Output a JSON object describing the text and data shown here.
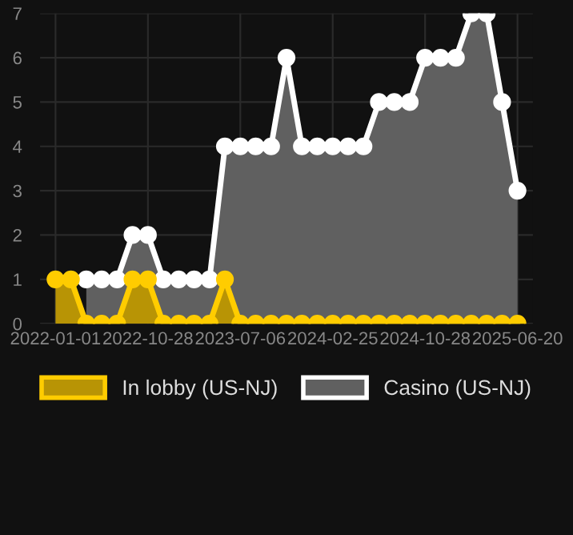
{
  "chart_data": {
    "type": "area",
    "categories": [
      "2022-01-01",
      null,
      null,
      null,
      null,
      null,
      "2022-10-28",
      null,
      null,
      null,
      null,
      null,
      "2023-07-06",
      null,
      null,
      null,
      null,
      null,
      "2024-02-25",
      null,
      null,
      null,
      null,
      null,
      "2024-10-28",
      null,
      null,
      null,
      null,
      null,
      "2025-06-20"
    ],
    "series": [
      {
        "name": "In lobby (US-NJ)",
        "color": "#ffcc00",
        "values": [
          1,
          1,
          0,
          0,
          0,
          1,
          1,
          0,
          0,
          0,
          0,
          1,
          0,
          0,
          0,
          0,
          0,
          0,
          0,
          0,
          0,
          0,
          0,
          0,
          0,
          0,
          0,
          0,
          0,
          0,
          0
        ]
      },
      {
        "name": "Casino (US-NJ)",
        "color": "#ffffff",
        "values": [
          null,
          null,
          1,
          1,
          1,
          2,
          2,
          1,
          1,
          1,
          1,
          4,
          4,
          4,
          4,
          6,
          4,
          4,
          4,
          4,
          4,
          5,
          5,
          5,
          6,
          6,
          6,
          7,
          7,
          5,
          3
        ]
      }
    ],
    "ylim": [
      0,
      7
    ],
    "yticks": [
      0,
      1,
      2,
      3,
      4,
      5,
      6,
      7
    ],
    "grid": true,
    "legend": "bottom",
    "marker": "circle",
    "line_style": "solid"
  }
}
